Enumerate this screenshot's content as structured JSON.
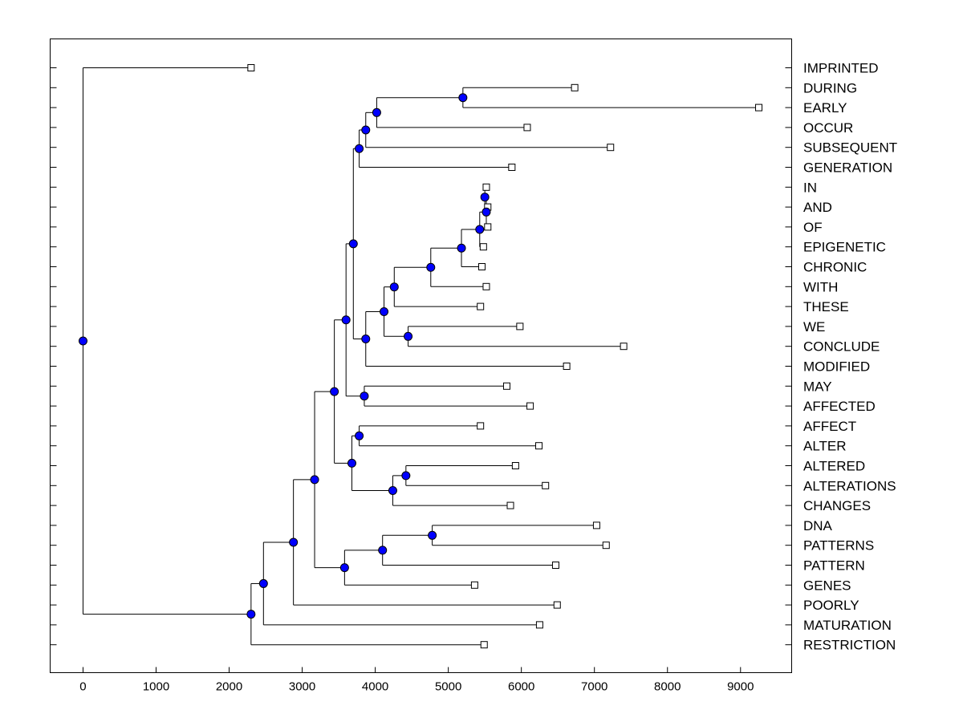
{
  "chart_data": {
    "type": "dendrogram",
    "title": "",
    "xlabel": "",
    "ylabel": "",
    "xlim": [
      -450,
      9700
    ],
    "x_ticks": [
      0,
      1000,
      2000,
      3000,
      4000,
      5000,
      6000,
      7000,
      8000,
      9000
    ],
    "leaves": [
      {
        "label": "IMPRINTED",
        "value": 2300
      },
      {
        "label": "DURING",
        "value": 6730
      },
      {
        "label": "EARLY",
        "value": 9250
      },
      {
        "label": "OCCUR",
        "value": 6080
      },
      {
        "label": "SUBSEQUENT",
        "value": 7220
      },
      {
        "label": "GENERATION",
        "value": 5870
      },
      {
        "label": "IN",
        "value": 5520
      },
      {
        "label": "AND",
        "value": 5540
      },
      {
        "label": "OF",
        "value": 5540
      },
      {
        "label": "EPIGENETIC",
        "value": 5480
      },
      {
        "label": "CHRONIC",
        "value": 5460
      },
      {
        "label": "WITH",
        "value": 5520
      },
      {
        "label": "THESE",
        "value": 5440
      },
      {
        "label": "WE",
        "value": 5980
      },
      {
        "label": "CONCLUDE",
        "value": 7400
      },
      {
        "label": "MODIFIED",
        "value": 6620
      },
      {
        "label": "MAY",
        "value": 5800
      },
      {
        "label": "AFFECTED",
        "value": 6120
      },
      {
        "label": "AFFECT",
        "value": 5440
      },
      {
        "label": "ALTER",
        "value": 6240
      },
      {
        "label": "ALTERED",
        "value": 5920
      },
      {
        "label": "ALTERATIONS",
        "value": 6330
      },
      {
        "label": "CHANGES",
        "value": 5850
      },
      {
        "label": "DNA",
        "value": 7030
      },
      {
        "label": "PATTERNS",
        "value": 7160
      },
      {
        "label": "PATTERN",
        "value": 6470
      },
      {
        "label": "GENES",
        "value": 5360
      },
      {
        "label": "POORLY",
        "value": 6490
      },
      {
        "label": "MATURATION",
        "value": 6250
      },
      {
        "label": "RESTRICTION",
        "value": 5490
      }
    ],
    "merges": [
      {
        "id": "m1",
        "height": 5500,
        "children": [
          "IN",
          "AND"
        ]
      },
      {
        "id": "m2",
        "height": 5520,
        "children": [
          "m1",
          "OF"
        ]
      },
      {
        "id": "m3",
        "height": 5430,
        "children": [
          "m2",
          "EPIGENETIC"
        ]
      },
      {
        "id": "m4",
        "height": 5180,
        "children": [
          "m3",
          "CHRONIC"
        ]
      },
      {
        "id": "m5",
        "height": 4760,
        "children": [
          "m4",
          "WITH"
        ]
      },
      {
        "id": "m6",
        "height": 4260,
        "children": [
          "m5",
          "THESE"
        ]
      },
      {
        "id": "m7",
        "height": 4450,
        "children": [
          "WE",
          "CONCLUDE"
        ]
      },
      {
        "id": "m8",
        "height": 4120,
        "children": [
          "m6",
          "m7"
        ]
      },
      {
        "id": "m9",
        "height": 3870,
        "children": [
          "m8",
          "MODIFIED"
        ]
      },
      {
        "id": "m10",
        "height": 5200,
        "children": [
          "DURING",
          "EARLY"
        ]
      },
      {
        "id": "m11",
        "height": 4020,
        "children": [
          "m10",
          "OCCUR"
        ]
      },
      {
        "id": "m12",
        "height": 3870,
        "children": [
          "m11",
          "SUBSEQUENT"
        ]
      },
      {
        "id": "m13",
        "height": 3780,
        "children": [
          "m12",
          "GENERATION"
        ]
      },
      {
        "id": "m14",
        "height": 3700,
        "children": [
          "m13",
          "m9"
        ]
      },
      {
        "id": "m15",
        "height": 3850,
        "children": [
          "MAY",
          "AFFECTED"
        ]
      },
      {
        "id": "m16",
        "height": 3600,
        "children": [
          "m14",
          "m15"
        ]
      },
      {
        "id": "m17",
        "height": 3780,
        "children": [
          "AFFECT",
          "ALTER"
        ]
      },
      {
        "id": "m18",
        "height": 4420,
        "children": [
          "ALTERED",
          "ALTERATIONS"
        ]
      },
      {
        "id": "m19",
        "height": 4240,
        "children": [
          "m18",
          "CHANGES"
        ]
      },
      {
        "id": "m20",
        "height": 3680,
        "children": [
          "m17",
          "m19"
        ]
      },
      {
        "id": "m21",
        "height": 3440,
        "children": [
          "m16",
          "m20"
        ]
      },
      {
        "id": "m22",
        "height": 4780,
        "children": [
          "DNA",
          "PATTERNS"
        ]
      },
      {
        "id": "m23",
        "height": 4100,
        "children": [
          "m22",
          "PATTERN"
        ]
      },
      {
        "id": "m24",
        "height": 3580,
        "children": [
          "m23",
          "GENES"
        ]
      },
      {
        "id": "m25",
        "height": 3170,
        "children": [
          "m21",
          "m24"
        ]
      },
      {
        "id": "m26",
        "height": 2880,
        "children": [
          "m25",
          "POORLY"
        ]
      },
      {
        "id": "m27",
        "height": 2470,
        "children": [
          "m26",
          "MATURATION"
        ]
      },
      {
        "id": "m28",
        "height": 2300,
        "children": [
          "m27",
          "RESTRICTION"
        ]
      },
      {
        "id": "m29",
        "height": 0,
        "children": [
          "IMPRINTED",
          "m28"
        ]
      }
    ],
    "grid": false,
    "legend": "none",
    "colors": {
      "node_fill": "#0000ff",
      "leaf_fill": "#ffffff",
      "line": "#000000"
    }
  }
}
